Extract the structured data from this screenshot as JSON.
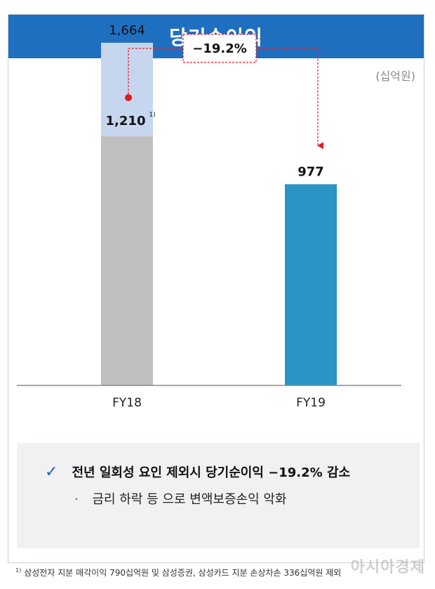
{
  "header": {
    "title": "당기순이익"
  },
  "unit_label": "(십억원)",
  "chart_data": {
    "type": "bar",
    "categories": [
      "FY18",
      "FY19"
    ],
    "totals": [
      1664,
      977
    ],
    "series": [
      {
        "values": [
          1210,
          977
        ],
        "colors": [
          "#bfbfbf",
          "#2a94c4"
        ]
      },
      {
        "values": [
          454,
          0
        ],
        "color": "#c6d6ef"
      }
    ],
    "value_labels": [
      "1,664",
      "977"
    ],
    "inner_label": {
      "text": "1,210",
      "footnote_marker": "1)"
    },
    "change_annotation": "−19.2%",
    "ylim": [
      0,
      1800
    ]
  },
  "summary": {
    "check_icon": "✓",
    "line1": "전년 일회성 요인 제외시 당기순이익 −19.2% 감소",
    "bullet": "·",
    "line2": "금리 하락 등 으로 변액보증손익 악화"
  },
  "footnote": {
    "marker": "1)",
    "text": "삼성전자 지분 매각이익 790십억원 및 삼성증권, 삼성카드 지분 손상차손 336십억원 제외"
  },
  "watermark": "아시아경제"
}
